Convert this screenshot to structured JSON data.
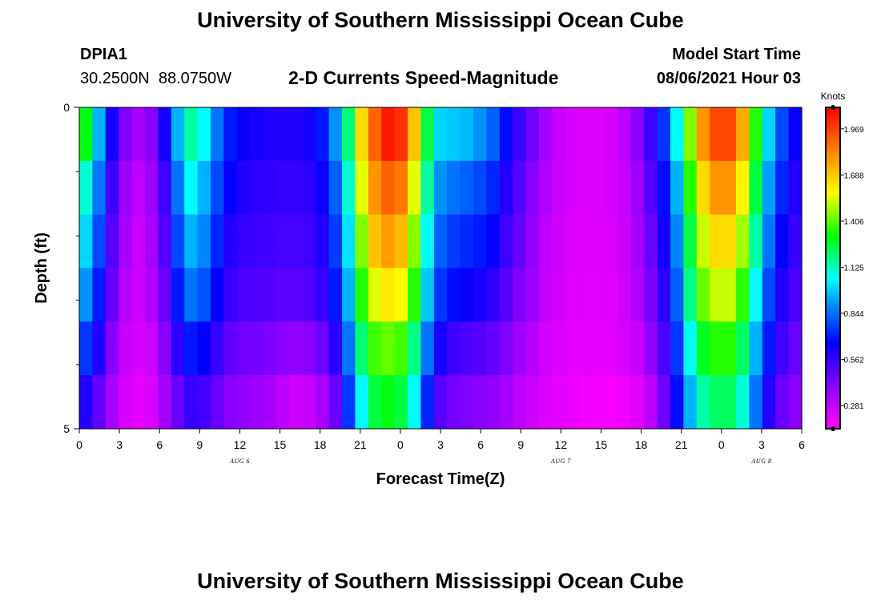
{
  "header": {
    "title": "University of Southern Mississippi Ocean Cube",
    "station_id": "DPIA1",
    "coordinates": "30.2500N  88.0750W",
    "subtitle": "2-D Currents Speed-Magnitude",
    "model_start_label": "Model Start Time",
    "model_start_value": "08/06/2021 Hour 03"
  },
  "footer": {
    "title": "University of Southern Mississippi Ocean Cube"
  },
  "chart_data": {
    "type": "heatmap",
    "title": "2-D Currents Speed-Magnitude",
    "xlabel": "Forecast Time(Z)",
    "ylabel": "Depth (ft)",
    "units": "Knots",
    "ylim": [
      0,
      5
    ],
    "y_tick_labels": [
      "0",
      "5"
    ],
    "y_minor_ticks": [
      1,
      2,
      3,
      4
    ],
    "x_tick_labels": [
      "0",
      "3",
      "6",
      "9",
      "12",
      "15",
      "18",
      "21",
      "0",
      "3",
      "6",
      "9",
      "12",
      "15",
      "18",
      "21",
      "0",
      "3",
      "6"
    ],
    "date_labels": [
      {
        "text": "AUG 6",
        "hour_index": 12
      },
      {
        "text": "AUG 7",
        "hour_index": 36
      },
      {
        "text": "AUG 8",
        "hour_index": 51
      }
    ],
    "colorbar": {
      "ticks": [
        "0.281",
        "0.562",
        "0.844",
        "1.125",
        "1.406",
        "1.688",
        "1.969"
      ],
      "min": 0.14,
      "max": 2.1,
      "colors": [
        "#ff00ff",
        "#cc00ff",
        "#8800ff",
        "#4400ff",
        "#0000ff",
        "#0050ff",
        "#00a0ff",
        "#00ffff",
        "#00ff80",
        "#00ff00",
        "#80ff00",
        "#ffff00",
        "#ffc000",
        "#ff8000",
        "#ff4000",
        "#ff0000"
      ]
    },
    "time_hours": [
      0,
      1,
      2,
      3,
      4,
      5,
      6,
      7,
      8,
      9,
      10,
      11,
      12,
      13,
      14,
      15,
      16,
      17,
      18,
      19,
      20,
      21,
      22,
      23,
      24,
      25,
      26,
      27,
      28,
      29,
      30,
      31,
      32,
      33,
      34,
      35,
      36,
      37,
      38,
      39,
      40,
      41,
      42,
      43,
      44,
      45,
      46,
      47,
      48,
      49,
      50,
      51,
      52,
      53,
      54
    ],
    "depth_levels": [
      0,
      1,
      2,
      3,
      4,
      5
    ],
    "values": [
      [
        1.3,
        0.95,
        0.62,
        0.42,
        0.34,
        0.4,
        0.62,
        0.95,
        1.15,
        1.05,
        0.85,
        0.7,
        0.65,
        0.62,
        0.6,
        0.6,
        0.6,
        0.62,
        0.7,
        0.9,
        1.2,
        1.65,
        1.9,
        2.05,
        2.0,
        1.7,
        1.25,
        1.0,
        0.98,
        0.96,
        0.9,
        0.82,
        0.68,
        0.55,
        0.45,
        0.35,
        0.28,
        0.24,
        0.22,
        0.22,
        0.24,
        0.3,
        0.4,
        0.55,
        0.75,
        1.05,
        1.45,
        1.8,
        1.95,
        1.95,
        1.75,
        1.35,
        1.0,
        0.78,
        0.65
      ],
      [
        1.1,
        0.85,
        0.55,
        0.36,
        0.3,
        0.36,
        0.55,
        0.85,
        1.05,
        0.95,
        0.78,
        0.65,
        0.6,
        0.58,
        0.57,
        0.56,
        0.56,
        0.58,
        0.64,
        0.82,
        1.1,
        1.55,
        1.8,
        1.9,
        1.85,
        1.55,
        1.15,
        0.9,
        0.85,
        0.82,
        0.78,
        0.72,
        0.6,
        0.5,
        0.4,
        0.32,
        0.27,
        0.24,
        0.22,
        0.22,
        0.24,
        0.28,
        0.36,
        0.5,
        0.68,
        0.95,
        1.35,
        1.65,
        1.8,
        1.8,
        1.6,
        1.25,
        0.92,
        0.72,
        0.6
      ],
      [
        1.0,
        0.78,
        0.5,
        0.34,
        0.28,
        0.34,
        0.5,
        0.78,
        0.95,
        0.88,
        0.72,
        0.6,
        0.56,
        0.55,
        0.54,
        0.53,
        0.53,
        0.55,
        0.6,
        0.76,
        1.02,
        1.45,
        1.7,
        1.78,
        1.72,
        1.45,
        1.05,
        0.82,
        0.76,
        0.73,
        0.7,
        0.65,
        0.55,
        0.46,
        0.38,
        0.3,
        0.26,
        0.23,
        0.22,
        0.22,
        0.23,
        0.27,
        0.34,
        0.46,
        0.62,
        0.88,
        1.25,
        1.52,
        1.65,
        1.65,
        1.48,
        1.15,
        0.85,
        0.66,
        0.56
      ],
      [
        0.9,
        0.7,
        0.46,
        0.31,
        0.27,
        0.32,
        0.46,
        0.7,
        0.85,
        0.8,
        0.66,
        0.56,
        0.52,
        0.51,
        0.5,
        0.49,
        0.49,
        0.51,
        0.56,
        0.7,
        0.95,
        1.35,
        1.55,
        1.62,
        1.58,
        1.35,
        0.98,
        0.75,
        0.68,
        0.65,
        0.62,
        0.58,
        0.5,
        0.42,
        0.36,
        0.29,
        0.25,
        0.22,
        0.21,
        0.21,
        0.22,
        0.26,
        0.32,
        0.43,
        0.58,
        0.82,
        1.18,
        1.42,
        1.52,
        1.52,
        1.36,
        1.05,
        0.78,
        0.6,
        0.52
      ],
      [
        0.75,
        0.6,
        0.4,
        0.28,
        0.24,
        0.28,
        0.4,
        0.58,
        0.7,
        0.66,
        0.56,
        0.48,
        0.45,
        0.44,
        0.42,
        0.4,
        0.38,
        0.4,
        0.45,
        0.58,
        0.85,
        1.2,
        1.38,
        1.42,
        1.38,
        1.18,
        0.85,
        0.62,
        0.55,
        0.52,
        0.5,
        0.47,
        0.42,
        0.36,
        0.31,
        0.26,
        0.23,
        0.21,
        0.2,
        0.2,
        0.21,
        0.24,
        0.28,
        0.38,
        0.52,
        0.75,
        1.05,
        1.28,
        1.35,
        1.35,
        1.22,
        0.95,
        0.7,
        0.54,
        0.46
      ],
      [
        0.6,
        0.48,
        0.34,
        0.24,
        0.2,
        0.24,
        0.34,
        0.46,
        0.56,
        0.54,
        0.46,
        0.4,
        0.38,
        0.36,
        0.34,
        0.3,
        0.26,
        0.28,
        0.34,
        0.46,
        0.75,
        1.05,
        1.25,
        1.3,
        1.25,
        1.05,
        0.72,
        0.5,
        0.44,
        0.42,
        0.4,
        0.38,
        0.34,
        0.3,
        0.27,
        0.23,
        0.21,
        0.19,
        0.17,
        0.16,
        0.16,
        0.18,
        0.22,
        0.3,
        0.45,
        0.68,
        0.95,
        1.15,
        1.22,
        1.22,
        1.1,
        0.85,
        0.6,
        0.46,
        0.4
      ]
    ]
  }
}
